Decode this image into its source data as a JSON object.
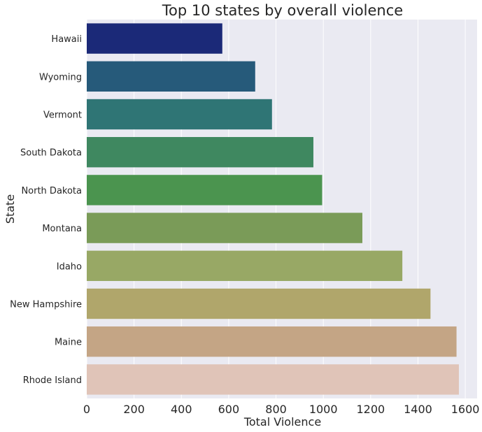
{
  "chart_data": {
    "type": "bar",
    "orientation": "horizontal",
    "title": "Top 10 states by overall violence",
    "xlabel": "Total Violence",
    "ylabel": "State",
    "xlim": [
      0,
      1650
    ],
    "xticks": [
      0,
      200,
      400,
      600,
      800,
      1000,
      1200,
      1400,
      1600
    ],
    "grid": true,
    "categories": [
      "Hawaii",
      "Wyoming",
      "Vermont",
      "South Dakota",
      "North Dakota",
      "Montana",
      "Idaho",
      "New Hampshire",
      "Maine",
      "Rhode Island"
    ],
    "values": [
      573,
      712,
      783,
      958,
      995,
      1165,
      1334,
      1453,
      1563,
      1573
    ],
    "colors": [
      "#1b2978",
      "#265a7a",
      "#2f7575",
      "#3f8860",
      "#4b944f",
      "#7a9b58",
      "#98a865",
      "#b0a66b",
      "#c4a585",
      "#e0c4b8"
    ]
  }
}
